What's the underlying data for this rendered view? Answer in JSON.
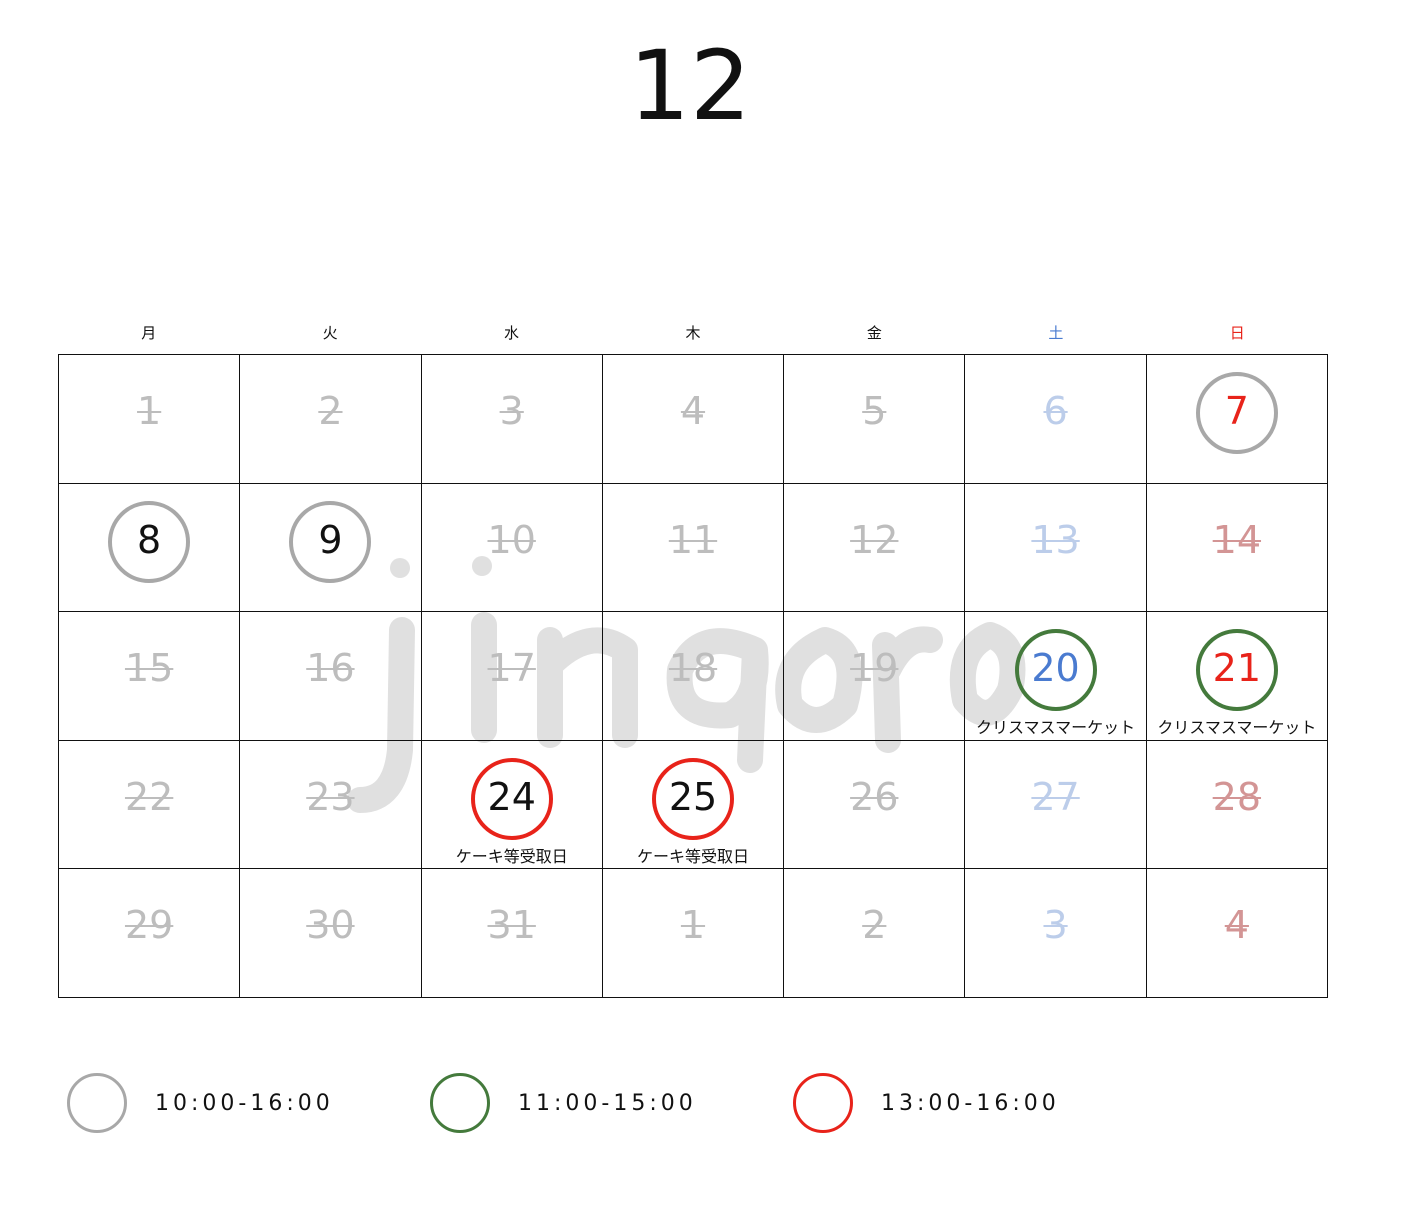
{
  "month": "12",
  "watermark": "jingoro",
  "weekdays": [
    {
      "label": "月",
      "color": "#111111"
    },
    {
      "label": "火",
      "color": "#111111"
    },
    {
      "label": "水",
      "color": "#111111"
    },
    {
      "label": "木",
      "color": "#111111"
    },
    {
      "label": "金",
      "color": "#111111"
    },
    {
      "label": "土",
      "color": "#4a7bd0"
    },
    {
      "label": "日",
      "color": "#e8231a"
    }
  ],
  "colors": {
    "closed_weekday": "#bdbdbd",
    "closed_sat": "#bccdea",
    "closed_sun": "#d39595",
    "open_weekday": "#111111",
    "open_sat": "#4a7bd0",
    "open_sun": "#e8231a",
    "ring_gray": "#a8a8a8",
    "ring_green": "#447a3c",
    "ring_red": "#e8231a"
  },
  "days": [
    {
      "d": "1",
      "open": false
    },
    {
      "d": "2",
      "open": false
    },
    {
      "d": "3",
      "open": false
    },
    {
      "d": "4",
      "open": false
    },
    {
      "d": "5",
      "open": false
    },
    {
      "d": "6",
      "open": false
    },
    {
      "d": "7",
      "open": true,
      "ring": "gray"
    },
    {
      "d": "8",
      "open": true,
      "ring": "gray"
    },
    {
      "d": "9",
      "open": true,
      "ring": "gray"
    },
    {
      "d": "10",
      "open": false
    },
    {
      "d": "11",
      "open": false
    },
    {
      "d": "12",
      "open": false
    },
    {
      "d": "13",
      "open": false
    },
    {
      "d": "14",
      "open": false
    },
    {
      "d": "15",
      "open": false
    },
    {
      "d": "16",
      "open": false
    },
    {
      "d": "17",
      "open": false
    },
    {
      "d": "18",
      "open": false
    },
    {
      "d": "19",
      "open": false
    },
    {
      "d": "20",
      "open": true,
      "ring": "green",
      "note": "クリスマスマーケット"
    },
    {
      "d": "21",
      "open": true,
      "ring": "green",
      "note": "クリスマスマーケット"
    },
    {
      "d": "22",
      "open": false
    },
    {
      "d": "23",
      "open": false
    },
    {
      "d": "24",
      "open": true,
      "ring": "red",
      "note": "ケーキ等受取日"
    },
    {
      "d": "25",
      "open": true,
      "ring": "red",
      "note": "ケーキ等受取日"
    },
    {
      "d": "26",
      "open": false
    },
    {
      "d": "27",
      "open": false
    },
    {
      "d": "28",
      "open": false
    },
    {
      "d": "29",
      "open": false
    },
    {
      "d": "30",
      "open": false
    },
    {
      "d": "31",
      "open": false
    },
    {
      "d": "1",
      "open": false
    },
    {
      "d": "2",
      "open": false
    },
    {
      "d": "3",
      "open": false
    },
    {
      "d": "4",
      "open": false
    }
  ],
  "legend": [
    {
      "ring": "gray",
      "label": "10:00-16:00"
    },
    {
      "ring": "green",
      "label": "11:00-15:00"
    },
    {
      "ring": "red",
      "label": "13:00-16:00"
    }
  ]
}
